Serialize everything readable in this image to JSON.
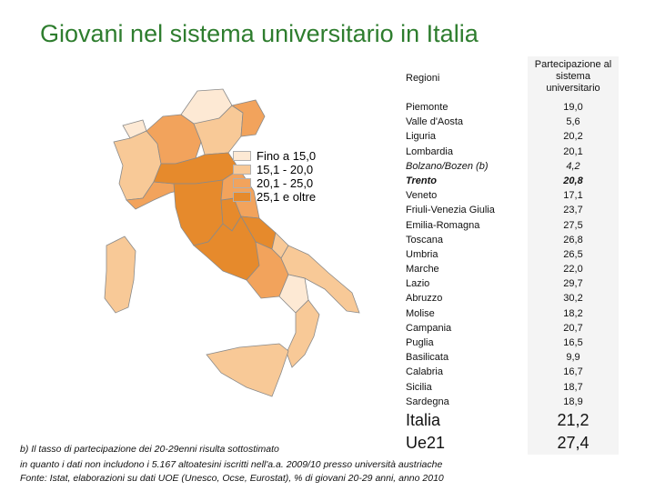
{
  "title": "Giovani nel sistema universitario in Italia",
  "colors": {
    "title": "#2e7d2e",
    "class1": "#fde9d4",
    "class2": "#f8c997",
    "class3": "#f2a35c",
    "class4": "#e68a2c"
  },
  "legend": [
    {
      "label": "Fino a 15,0",
      "color": "#fde9d4"
    },
    {
      "label": "15,1 - 20,0",
      "color": "#f8c997"
    },
    {
      "label": "20,1 - 25,0",
      "color": "#f2a35c"
    },
    {
      "label": "25,1 e oltre",
      "color": "#e68a2c"
    }
  ],
  "table": {
    "header_region": "Regioni",
    "header_value": "Partecipazione al sistema universitario",
    "rows": [
      {
        "region": "Piemonte",
        "value": "19,0"
      },
      {
        "region": "Valle d'Aosta",
        "value": "5,6"
      },
      {
        "region": "Liguria",
        "value": "20,2"
      },
      {
        "region": "Lombardia",
        "value": "20,1"
      },
      {
        "region": "Bolzano/Bozen (b)",
        "value": "4,2"
      },
      {
        "region": "Trento",
        "value": "20,8"
      },
      {
        "region": "Veneto",
        "value": "17,1"
      },
      {
        "region": "Friuli-Venezia Giulia",
        "value": "23,7"
      },
      {
        "region": "Emilia-Romagna",
        "value": "27,5"
      },
      {
        "region": "Toscana",
        "value": "26,8"
      },
      {
        "region": "Umbria",
        "value": "26,5"
      },
      {
        "region": "Marche",
        "value": "22,0"
      },
      {
        "region": "Lazio",
        "value": "29,7"
      },
      {
        "region": "Abruzzo",
        "value": "30,2"
      },
      {
        "region": "Molise",
        "value": "18,2"
      },
      {
        "region": "Campania",
        "value": "20,7"
      },
      {
        "region": "Puglia",
        "value": "16,5"
      },
      {
        "region": "Basilicata",
        "value": "9,9"
      },
      {
        "region": "Calabria",
        "value": "16,7"
      },
      {
        "region": "Sicilia",
        "value": "18,7"
      },
      {
        "region": "Sardegna",
        "value": "18,9"
      }
    ],
    "totals": [
      {
        "region": "Italia",
        "value": "21,2"
      },
      {
        "region": "Ue21",
        "value": "27,4"
      }
    ]
  },
  "footnotes": {
    "note_b": "b) Il tasso di partecipazione dei 20-29enni risulta sottostimato",
    "note_b_cont": "in quanto i dati non includono i  5.167 altoatesini iscritti nell'a.a. 2009/10 presso università austriache",
    "source": "Fonte: Istat, elaborazioni su dati UOE (Unesco, Ocse, Eurostat), % di giovani 20-29 anni, anno 2010"
  }
}
